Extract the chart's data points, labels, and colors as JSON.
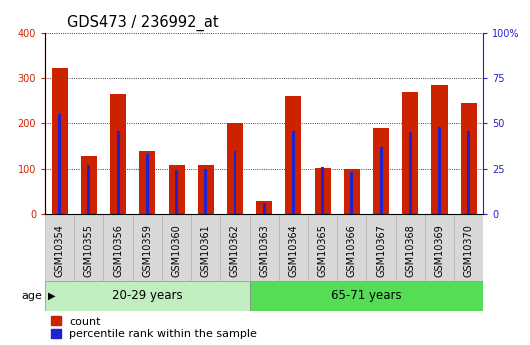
{
  "title": "GDS473 / 236992_at",
  "samples": [
    "GSM10354",
    "GSM10355",
    "GSM10356",
    "GSM10359",
    "GSM10360",
    "GSM10361",
    "GSM10362",
    "GSM10363",
    "GSM10364",
    "GSM10365",
    "GSM10366",
    "GSM10367",
    "GSM10368",
    "GSM10369",
    "GSM10370"
  ],
  "counts": [
    323,
    128,
    265,
    140,
    108,
    108,
    200,
    28,
    260,
    102,
    100,
    190,
    270,
    285,
    245
  ],
  "percentile_ranks": [
    55,
    27,
    46,
    33,
    24,
    25,
    35,
    6,
    46,
    26,
    23,
    37,
    45,
    48,
    46
  ],
  "group_labels": [
    "20-29 years",
    "65-71 years"
  ],
  "group_split": 7,
  "ylim_left": [
    0,
    400
  ],
  "ylim_right": [
    0,
    100
  ],
  "yticks_left": [
    0,
    100,
    200,
    300,
    400
  ],
  "yticks_right": [
    0,
    25,
    50,
    75,
    100
  ],
  "bar_color": "#cc2200",
  "percentile_color": "#2222cc",
  "group1_bg": "#c0eec0",
  "group2_bg": "#55dd55",
  "tick_bg": "#d8d8d8",
  "plot_bg": "#ffffff",
  "bar_width": 0.55,
  "title_fontsize": 10.5,
  "tick_fontsize": 7,
  "legend_fontsize": 8,
  "age_label": "age",
  "legend_items": [
    "count",
    "percentile rank within the sample"
  ]
}
